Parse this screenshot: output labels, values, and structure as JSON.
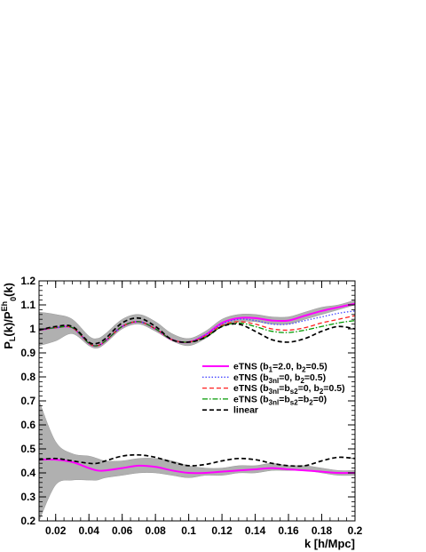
{
  "chart_data": {
    "type": "line",
    "xlabel": "k [h/Mpc]",
    "ylabel": "P_L(k)/P^Eh_0(k)",
    "xlim": [
      0.01,
      0.2
    ],
    "ylim": [
      0.2,
      1.2
    ],
    "x_ticks": [
      0.02,
      0.04,
      0.06,
      0.08,
      0.1,
      0.12,
      0.14,
      0.16,
      0.18,
      0.2
    ],
    "x_tick_labels": [
      "0.02",
      "0.04",
      "0.06",
      "0.08",
      "0.1",
      "0.12",
      "0.14",
      "0.16",
      "0.18",
      "0.2"
    ],
    "y_ticks": [
      0.2,
      0.3,
      0.4,
      0.5,
      0.6,
      0.7,
      0.8,
      0.9,
      1.0,
      1.1,
      1.2
    ],
    "y_tick_labels": [
      "0.2",
      "0.3",
      "0.4",
      "0.5",
      "0.6",
      "0.7",
      "0.8",
      "0.9",
      "1",
      "1.1",
      "1.2"
    ],
    "grid": false,
    "legend_position": "right",
    "x": [
      0.01,
      0.02,
      0.03,
      0.04,
      0.045,
      0.05,
      0.06,
      0.07,
      0.08,
      0.09,
      0.1,
      0.11,
      0.12,
      0.13,
      0.14,
      0.15,
      0.16,
      0.17,
      0.18,
      0.19,
      0.2
    ],
    "bands": {
      "monopole": {
        "fill": "#b0b0b0",
        "upper": [
          1.07,
          1.06,
          1.04,
          0.97,
          0.96,
          0.98,
          1.04,
          1.06,
          1.03,
          0.98,
          0.96,
          0.99,
          1.04,
          1.06,
          1.06,
          1.05,
          1.05,
          1.07,
          1.09,
          1.1,
          1.12
        ],
        "lower": [
          0.93,
          0.95,
          0.98,
          0.93,
          0.92,
          0.94,
          1.0,
          1.02,
          0.99,
          0.95,
          0.93,
          0.96,
          1.01,
          1.03,
          1.03,
          1.02,
          1.02,
          1.04,
          1.06,
          1.08,
          1.1
        ]
      },
      "quadrupole": {
        "fill": "#b0b0b0",
        "upper": [
          0.7,
          0.53,
          0.48,
          0.47,
          0.46,
          0.45,
          0.45,
          0.46,
          0.46,
          0.45,
          0.43,
          0.42,
          0.42,
          0.43,
          0.43,
          0.44,
          0.43,
          0.43,
          0.42,
          0.41,
          0.41
        ],
        "lower": [
          0.2,
          0.35,
          0.37,
          0.37,
          0.37,
          0.38,
          0.39,
          0.4,
          0.4,
          0.39,
          0.38,
          0.39,
          0.39,
          0.4,
          0.4,
          0.41,
          0.41,
          0.41,
          0.4,
          0.39,
          0.39
        ]
      }
    },
    "series": [
      {
        "name": "eTNS (b_1=2.0, b_2=0.5)",
        "color": "#ff00ff",
        "dash": "solid",
        "values": [
          0.995,
          1.005,
          1.005,
          0.94,
          0.93,
          0.95,
          1.01,
          1.03,
          1.0,
          0.955,
          0.945,
          0.975,
          1.025,
          1.045,
          1.045,
          1.035,
          1.035,
          1.055,
          1.075,
          1.09,
          1.105
        ],
        "quad_values": [
          0.455,
          0.455,
          0.445,
          0.42,
          0.41,
          0.41,
          0.42,
          0.43,
          0.425,
          0.41,
          0.4,
          0.4,
          0.405,
          0.41,
          0.415,
          0.42,
          0.415,
          0.41,
          0.405,
          0.4,
          0.4
        ]
      },
      {
        "name": "eTNS (b_3nl=0, b_2=0.5)",
        "color": "#4a4aff",
        "dash": "dotted",
        "values": [
          0.995,
          1.005,
          1.005,
          0.94,
          0.93,
          0.95,
          1.01,
          1.03,
          1.0,
          0.955,
          0.945,
          0.975,
          1.02,
          1.04,
          1.035,
          1.02,
          1.02,
          1.035,
          1.05,
          1.065,
          1.075
        ]
      },
      {
        "name": "eTNS (b_3nl=b_s2=0, b_2=0.5)",
        "color": "#ff2020",
        "dash": "dashed",
        "values": [
          0.995,
          1.005,
          1.005,
          0.94,
          0.93,
          0.95,
          1.01,
          1.03,
          1.0,
          0.955,
          0.945,
          0.97,
          1.015,
          1.03,
          1.02,
          1.0,
          0.995,
          1.005,
          1.025,
          1.04,
          1.055
        ]
      },
      {
        "name": "eTNS (b_3nl=b_s2=b_2=0)",
        "color": "#009900",
        "dash": "dashdot",
        "values": [
          0.995,
          1.005,
          1.005,
          0.94,
          0.93,
          0.95,
          1.01,
          1.03,
          1.0,
          0.955,
          0.945,
          0.965,
          1.01,
          1.025,
          1.01,
          0.99,
          0.985,
          0.995,
          1.01,
          1.025,
          1.035
        ]
      },
      {
        "name": "linear",
        "color": "#000000",
        "dash": "dashed",
        "values": [
          0.995,
          1.01,
          1.01,
          0.945,
          0.94,
          0.96,
          1.025,
          1.045,
          1.01,
          0.955,
          0.945,
          0.965,
          1.01,
          1.02,
          0.99,
          0.955,
          0.945,
          0.96,
          0.99,
          1.01,
          1.0
        ],
        "quad_values": [
          0.455,
          0.46,
          0.45,
          0.44,
          0.44,
          0.45,
          0.47,
          0.475,
          0.465,
          0.445,
          0.43,
          0.435,
          0.45,
          0.46,
          0.455,
          0.44,
          0.43,
          0.43,
          0.45,
          0.465,
          0.46
        ]
      }
    ],
    "legend": [
      {
        "base": "eTNS (b",
        "parts": [
          [
            "1",
            "=2.0, b"
          ],
          [
            "2",
            "=0.5)"
          ]
        ]
      },
      {
        "base": "eTNS (b",
        "parts": [
          [
            "3nl",
            "=0, b"
          ],
          [
            "2",
            "=0.5)"
          ]
        ]
      },
      {
        "base": "eTNS (b",
        "parts": [
          [
            "3nl",
            "=b"
          ],
          [
            "s2",
            "=0, b"
          ],
          [
            "2",
            "=0.5)"
          ]
        ]
      },
      {
        "base": "eTNS (b",
        "parts": [
          [
            "3nl",
            "=b"
          ],
          [
            "s2",
            "=b"
          ],
          [
            "2",
            "=0)"
          ]
        ]
      },
      {
        "base": "linear",
        "parts": []
      }
    ]
  }
}
